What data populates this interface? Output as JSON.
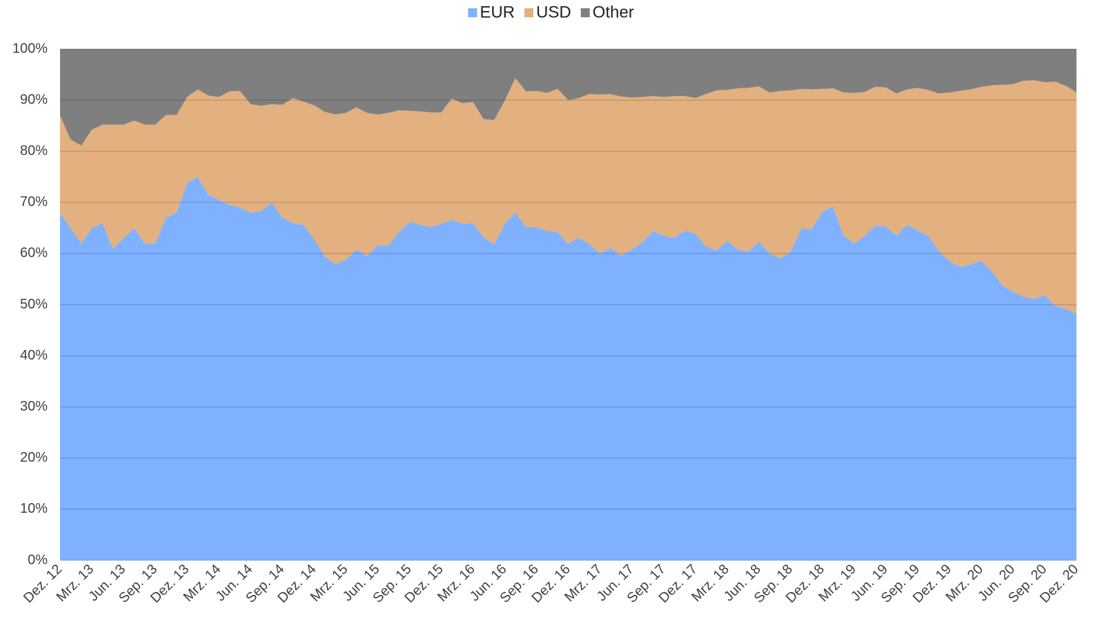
{
  "chart_data": {
    "type": "stacked_area",
    "categories": [
      "Dez. 12",
      null,
      null,
      "Mrz. 13",
      null,
      null,
      "Jun. 13",
      null,
      null,
      "Sep. 13",
      null,
      null,
      "Dez. 13",
      null,
      null,
      "Mrz. 14",
      null,
      null,
      "Jun. 14",
      null,
      null,
      "Sep. 14",
      null,
      null,
      "Dez. 14",
      null,
      null,
      "Mrz. 15",
      null,
      null,
      "Jun. 15",
      null,
      null,
      "Sep. 15",
      null,
      null,
      "Dez. 15",
      null,
      null,
      "Mrz. 16",
      null,
      null,
      "Jun. 16",
      null,
      null,
      "Sep. 16",
      null,
      null,
      "Dez. 16",
      null,
      null,
      "Mrz. 17",
      null,
      null,
      "Jun. 17",
      null,
      null,
      "Sep. 17",
      null,
      null,
      "Dez. 17",
      null,
      null,
      "Mrz. 18",
      null,
      null,
      "Jun. 18",
      null,
      null,
      "Sep. 18",
      null,
      null,
      "Dez. 18",
      null,
      null,
      "Mrz. 19",
      null,
      null,
      "Jun. 19",
      null,
      null,
      "Sep. 19",
      null,
      null,
      "Dez. 19",
      null,
      null,
      "Mrz. 20",
      null,
      null,
      "Jun. 20",
      null,
      null,
      "Sep. 20",
      null,
      null,
      "Dez. 20"
    ],
    "series": [
      {
        "name": "EUR",
        "color": "#7fb1ff",
        "values": [
          68,
          65,
          62,
          65,
          66,
          61,
          63,
          65,
          62,
          62,
          67,
          68,
          73.8,
          75,
          71.5,
          70.5,
          69.5,
          69,
          68,
          68.3,
          70,
          67,
          66,
          65.6,
          62.8,
          59.5,
          57.9,
          58.8,
          60.8,
          59.5,
          61.7,
          61.5,
          64.2,
          66.2,
          65.6,
          65.2,
          65.8,
          66.6,
          65.8,
          66,
          63.2,
          61.8,
          65.8,
          68,
          65.2,
          65.2,
          64.4,
          64.2,
          61.9,
          63.1,
          61.8,
          60,
          61.1,
          59.6,
          60.8,
          62.2,
          64.4,
          63.5,
          63,
          64.5,
          63.9,
          61.4,
          60.6,
          62.5,
          60.8,
          60.3,
          62.3,
          60.1,
          59.1,
          60.3,
          64.9,
          64.8,
          68.2,
          69.2,
          63.5,
          62,
          63.4,
          65.5,
          65.3,
          63.5,
          65.7,
          64.5,
          63.5,
          60.5,
          58.5,
          57.4,
          57.9,
          58.6,
          56.5,
          53.8,
          52.5,
          51.6,
          51.1,
          51.9,
          49.8,
          49.2,
          48.2
        ]
      },
      {
        "name": "USD",
        "color": "#e3b07f",
        "values": [
          19,
          17.3,
          19.1,
          19.2,
          19.2,
          24.2,
          22.2,
          21,
          23.2,
          23.2,
          20.1,
          19.1,
          16.8,
          17.1,
          19.4,
          20.1,
          22.2,
          22.8,
          21.2,
          20.6,
          19.2,
          22.1,
          24.4,
          24.1,
          26.2,
          28.2,
          29.3,
          28.7,
          27.8,
          28,
          25.5,
          26,
          23.8,
          21.7,
          22.2,
          22.4,
          21.8,
          23.7,
          23.6,
          23.6,
          23.1,
          24.3,
          24.1,
          26.3,
          26.5,
          26.6,
          27,
          28,
          28.1,
          27.3,
          29.4,
          31.1,
          30.1,
          31.1,
          29.7,
          28.4,
          26.4,
          27.1,
          27.8,
          26.3,
          26.5,
          29.8,
          31.3,
          29.5,
          31.5,
          32.1,
          30.4,
          31.4,
          32.7,
          31.6,
          27.3,
          27.3,
          24,
          23.1,
          28,
          29.4,
          28.2,
          27.1,
          27.2,
          27.8,
          26.4,
          27.9,
          28.5,
          30.8,
          33,
          34.4,
          34.2,
          34,
          36.4,
          39.2,
          40.6,
          42.2,
          42.8,
          41.6,
          43.8,
          43.6,
          43.3
        ]
      },
      {
        "name": "Other",
        "color": "#7f7f7f",
        "values": [
          13,
          17.7,
          18.9,
          15.8,
          14.8,
          14.8,
          14.8,
          14,
          14.8,
          14.8,
          12.9,
          12.9,
          9.4,
          7.9,
          9.1,
          9.4,
          8.3,
          8.2,
          10.8,
          11.1,
          10.8,
          10.9,
          9.6,
          10.3,
          11,
          12.3,
          12.8,
          12.5,
          11.4,
          12.5,
          12.8,
          12.5,
          12,
          12.1,
          12.2,
          12.4,
          12.4,
          9.7,
          10.6,
          10.4,
          13.7,
          13.9,
          10.1,
          5.7,
          8.3,
          8.2,
          8.6,
          7.8,
          10,
          9.6,
          8.8,
          8.9,
          8.8,
          9.3,
          9.5,
          9.4,
          9.2,
          9.4,
          9.2,
          9.2,
          9.6,
          8.8,
          8.1,
          8,
          7.7,
          7.6,
          7.3,
          8.5,
          8.2,
          8.1,
          7.8,
          7.9,
          7.8,
          7.7,
          8.5,
          8.6,
          8.4,
          7.4,
          7.5,
          8.7,
          7.9,
          7.6,
          8,
          8.7,
          8.5,
          8.2,
          7.9,
          7.4,
          7.1,
          7,
          6.9,
          6.2,
          6.1,
          6.5,
          6.4,
          7.2,
          8.5
        ]
      }
    ],
    "ylim": [
      0,
      100
    ],
    "yticks": [
      {
        "value": 0,
        "label": "0%"
      },
      {
        "value": 10,
        "label": "10%"
      },
      {
        "value": 20,
        "label": "20%"
      },
      {
        "value": 30,
        "label": "30%"
      },
      {
        "value": 40,
        "label": "40%"
      },
      {
        "value": 50,
        "label": "50%"
      },
      {
        "value": 60,
        "label": "60%"
      },
      {
        "value": 70,
        "label": "70%"
      },
      {
        "value": 80,
        "label": "80%"
      },
      {
        "value": 90,
        "label": "90%"
      },
      {
        "value": 100,
        "label": "100%"
      }
    ],
    "grid": true,
    "legend": "top"
  }
}
